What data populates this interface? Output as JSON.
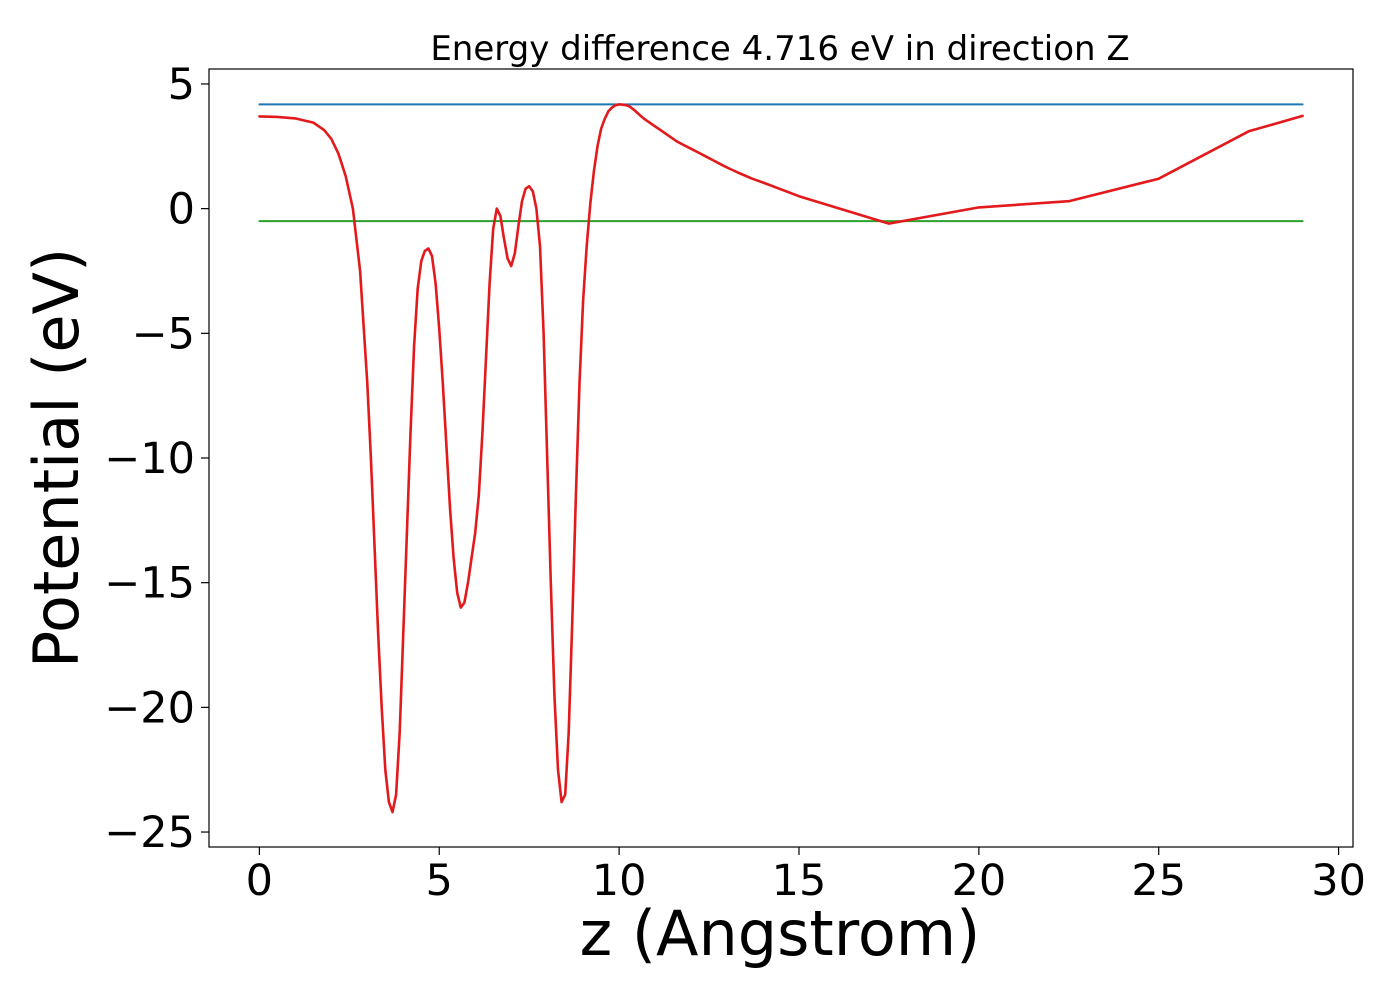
{
  "chart_data": {
    "type": "line",
    "title": "Energy difference 4.716 eV in direction Z",
    "xlabel": "z (Angstrom)",
    "ylabel": "Potential (eV)",
    "xlim": [
      -1.4,
      30.4
    ],
    "ylim": [
      -25.6,
      5.6
    ],
    "x_ticks": [
      0,
      5,
      10,
      15,
      20,
      25,
      30
    ],
    "y_ticks": [
      5,
      0,
      -5,
      -10,
      -15,
      -20,
      -25
    ],
    "x_tick_labels": [
      "0",
      "5",
      "10",
      "15",
      "20",
      "25",
      "30"
    ],
    "y_tick_labels": [
      "5",
      "0",
      "−5",
      "−10",
      "−15",
      "−20",
      "−25"
    ],
    "grid": false,
    "series": [
      {
        "color": "#1f77b4",
        "x": [
          0,
          29
        ],
        "y": [
          4.18,
          4.18
        ]
      },
      {
        "color": "#2ca02c",
        "x": [
          0,
          29
        ],
        "y": [
          -0.5,
          -0.5
        ]
      },
      {
        "color": "#e31a1c",
        "x": [
          0,
          0.5,
          1.0,
          1.5,
          1.8,
          2.0,
          2.2,
          2.4,
          2.6,
          2.8,
          3.0,
          3.1,
          3.2,
          3.3,
          3.4,
          3.5,
          3.6,
          3.7,
          3.8,
          3.9,
          4.0,
          4.1,
          4.2,
          4.3,
          4.4,
          4.5,
          4.6,
          4.7,
          4.8,
          4.9,
          5.0,
          5.1,
          5.2,
          5.3,
          5.4,
          5.5,
          5.6,
          5.7,
          5.8,
          5.9,
          6.0,
          6.1,
          6.2,
          6.3,
          6.4,
          6.5,
          6.6,
          6.7,
          6.8,
          6.9,
          7.0,
          7.1,
          7.2,
          7.3,
          7.4,
          7.5,
          7.6,
          7.7,
          7.8,
          7.9,
          8.0,
          8.1,
          8.2,
          8.3,
          8.4,
          8.5,
          8.6,
          8.7,
          8.8,
          8.9,
          9.0,
          9.1,
          9.2,
          9.3,
          9.4,
          9.5,
          9.6,
          9.7,
          9.8,
          9.9,
          10.0,
          10.1,
          10.2,
          10.3,
          10.4,
          10.5,
          10.6,
          10.7,
          10.8,
          10.9,
          11.0,
          11.1,
          11.2,
          11.3,
          11.4,
          11.5,
          11.6,
          11.8,
          12.0,
          12.2,
          12.4,
          12.6,
          12.8,
          13.0,
          13.3,
          13.7,
          14.0,
          15.0,
          17.5,
          20.0,
          22.5,
          25.0,
          27.5,
          29.0
        ],
        "y": [
          3.7,
          3.68,
          3.62,
          3.45,
          3.15,
          2.8,
          2.2,
          1.3,
          0.0,
          -2.5,
          -7.0,
          -10.0,
          -13.5,
          -17.0,
          -20.0,
          -22.5,
          -23.8,
          -24.2,
          -23.5,
          -21.0,
          -17.0,
          -13.0,
          -9.0,
          -5.5,
          -3.2,
          -2.1,
          -1.7,
          -1.6,
          -1.9,
          -3.0,
          -4.8,
          -7.0,
          -9.5,
          -12.0,
          -14.0,
          -15.4,
          -16.0,
          -15.8,
          -15.0,
          -14.0,
          -13.0,
          -11.5,
          -9.0,
          -6.0,
          -3.0,
          -0.8,
          0.0,
          -0.3,
          -1.2,
          -2.0,
          -2.3,
          -1.8,
          -0.7,
          0.3,
          0.8,
          0.9,
          0.7,
          0.0,
          -1.5,
          -5.0,
          -10.0,
          -15.0,
          -19.5,
          -22.5,
          -23.8,
          -23.5,
          -21.0,
          -16.5,
          -11.5,
          -7.0,
          -3.7,
          -1.5,
          0.2,
          1.5,
          2.5,
          3.2,
          3.6,
          3.9,
          4.05,
          4.15,
          4.18,
          4.17,
          4.15,
          4.09,
          3.98,
          3.85,
          3.72,
          3.6,
          3.5,
          3.4,
          3.3,
          3.2,
          3.1,
          3.0,
          2.9,
          2.8,
          2.7,
          2.55,
          2.4,
          2.25,
          2.1,
          1.95,
          1.8,
          1.65,
          1.45,
          1.2,
          1.05,
          0.5,
          -0.6,
          0.05,
          0.3,
          1.2,
          3.1,
          3.72
        ]
      }
    ]
  }
}
